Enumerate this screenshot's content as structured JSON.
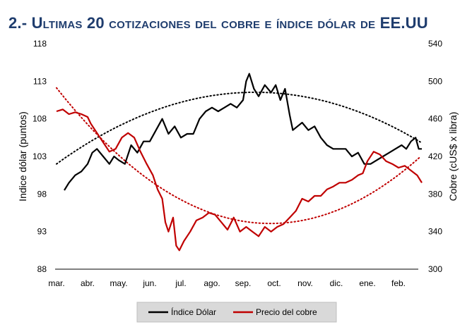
{
  "title": "2.- Ultimas 20 cotizaciones del cobre e índice dólar de EE.UU",
  "chart_data": {
    "type": "line",
    "title": "2.- Ultimas 20 cotizaciones del cobre e índice dólar de EE.UU",
    "categories": [
      "mar.",
      "abr.",
      "may.",
      "jun.",
      "jul.",
      "ago.",
      "sep.",
      "oct.",
      "nov.",
      "dic.",
      "ene.",
      "feb."
    ],
    "ylabel_left": "Indice dólar (puntos)",
    "ylabel_right": "Cobre (cUS$ x libra)",
    "y_left_ticks": [
      "88",
      "93",
      "98",
      "103",
      "108",
      "113",
      "118"
    ],
    "y_right_ticks": [
      "300",
      "340",
      "380",
      "420",
      "460",
      "500",
      "540"
    ],
    "ylim_left": [
      88,
      118
    ],
    "ylim_right": [
      300,
      540
    ],
    "grid": false,
    "legend_position": "bottom",
    "series": [
      {
        "name": "Índice Dólar",
        "axis": "left",
        "color": "#000000",
        "x": [
          0.25,
          0.4,
          0.6,
          0.8,
          1.0,
          1.15,
          1.3,
          1.5,
          1.7,
          1.85,
          2.0,
          2.2,
          2.4,
          2.6,
          2.8,
          3.0,
          3.2,
          3.4,
          3.6,
          3.8,
          4.0,
          4.2,
          4.4,
          4.6,
          4.8,
          5.0,
          5.2,
          5.4,
          5.6,
          5.8,
          6.0,
          6.1,
          6.2,
          6.35,
          6.5,
          6.7,
          6.9,
          7.05,
          7.2,
          7.35,
          7.5,
          7.6,
          7.75,
          7.9,
          8.1,
          8.3,
          8.5,
          8.7,
          8.9,
          9.1,
          9.3,
          9.5,
          9.7,
          9.9,
          10.1,
          10.3,
          10.5,
          10.7,
          10.9,
          11.1,
          11.25,
          11.4,
          11.55,
          11.65,
          11.75
        ],
        "values": [
          98.5,
          99.5,
          100.5,
          101.0,
          102.0,
          103.5,
          104.0,
          103.0,
          102.0,
          103.0,
          102.5,
          102.0,
          104.5,
          103.5,
          105.0,
          105.0,
          106.5,
          108.0,
          106.0,
          107.0,
          105.5,
          106.0,
          106.0,
          108.0,
          109.0,
          109.5,
          109.0,
          109.5,
          110.0,
          109.5,
          110.5,
          113.0,
          114.0,
          112.0,
          111.0,
          112.5,
          111.5,
          112.5,
          110.5,
          112.0,
          108.5,
          106.5,
          107.0,
          107.5,
          106.5,
          107.0,
          105.5,
          104.5,
          104.0,
          104.0,
          104.0,
          103.0,
          103.5,
          102.0,
          102.0,
          102.5,
          103.0,
          103.5,
          104.0,
          104.5,
          104.0,
          105.0,
          105.5,
          104.0,
          104.0
        ]
      },
      {
        "name": "Precio del cobre",
        "axis": "right",
        "color": "#c00000",
        "x": [
          0.0,
          0.2,
          0.4,
          0.6,
          0.8,
          1.0,
          1.1,
          1.3,
          1.5,
          1.7,
          1.9,
          2.1,
          2.3,
          2.5,
          2.7,
          2.9,
          3.1,
          3.25,
          3.4,
          3.5,
          3.6,
          3.75,
          3.85,
          3.95,
          4.1,
          4.3,
          4.5,
          4.7,
          4.9,
          5.1,
          5.3,
          5.5,
          5.7,
          5.9,
          6.1,
          6.3,
          6.5,
          6.7,
          6.9,
          7.1,
          7.3,
          7.5,
          7.7,
          7.9,
          8.1,
          8.3,
          8.5,
          8.7,
          8.9,
          9.1,
          9.3,
          9.5,
          9.7,
          9.85,
          10.0,
          10.2,
          10.4,
          10.6,
          10.8,
          11.0,
          11.2,
          11.4,
          11.6,
          11.75
        ],
        "values": [
          468,
          470,
          465,
          467,
          465,
          462,
          455,
          445,
          435,
          425,
          428,
          440,
          445,
          440,
          425,
          412,
          400,
          385,
          375,
          350,
          340,
          355,
          325,
          320,
          330,
          340,
          352,
          355,
          360,
          358,
          350,
          342,
          355,
          340,
          345,
          340,
          335,
          345,
          340,
          345,
          348,
          355,
          362,
          375,
          372,
          378,
          378,
          385,
          388,
          392,
          392,
          395,
          400,
          402,
          415,
          425,
          422,
          415,
          412,
          408,
          410,
          405,
          400,
          392
        ]
      }
    ],
    "trendlines": [
      {
        "of": "Índice Dólar",
        "axis": "left",
        "style": "dotted",
        "order": 2,
        "x_domain": [
          0.0,
          11.75
        ],
        "values_at": {
          "0": 102.0,
          "6": 111.5,
          "11.75": 104.8
        }
      },
      {
        "of": "Precio del cobre",
        "axis": "right",
        "style": "dotted",
        "order": 2,
        "x_domain": [
          0.0,
          11.75
        ],
        "values_at": {
          "0": 493.0,
          "6": 351.0,
          "11.75": 421.0
        }
      }
    ]
  },
  "legend": {
    "items": [
      {
        "label": "Índice Dólar",
        "color": "#000000"
      },
      {
        "label": "Precio del cobre",
        "color": "#c00000"
      }
    ]
  }
}
